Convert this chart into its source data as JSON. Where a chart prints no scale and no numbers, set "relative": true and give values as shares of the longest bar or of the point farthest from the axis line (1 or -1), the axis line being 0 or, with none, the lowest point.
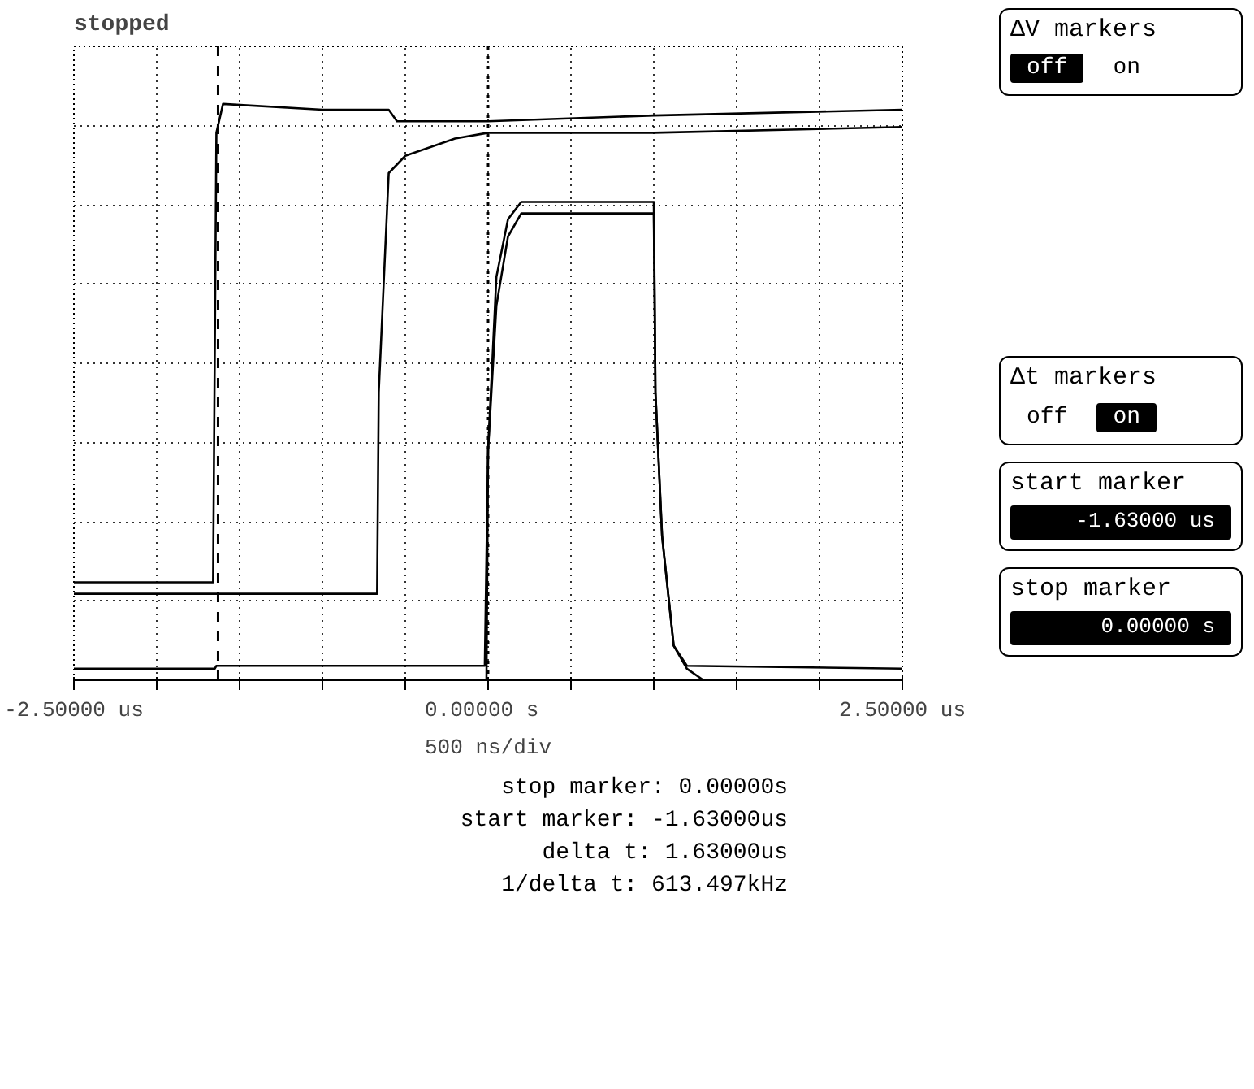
{
  "chart_data": {
    "type": "line",
    "relative": true,
    "title": "stopped",
    "xlabel": "500 ns/div",
    "xlim": [
      -2.5,
      2.5
    ],
    "xticks": [
      {
        "value": -2.5,
        "label": "-2.50000 us"
      },
      {
        "value": -2.0,
        "label": null
      },
      {
        "value": -1.5,
        "label": null
      },
      {
        "value": -1.0,
        "label": null
      },
      {
        "value": -0.5,
        "label": null
      },
      {
        "value": 0,
        "label": "0.00000  s"
      },
      {
        "value": 0.5,
        "label": null
      },
      {
        "value": 1.0,
        "label": null
      },
      {
        "value": 1.5,
        "label": null
      },
      {
        "value": 2.0,
        "label": null
      },
      {
        "value": 2.5,
        "label": "2.50000 us"
      }
    ],
    "grid": true,
    "line_style": "solid",
    "tick_labels": "x",
    "series": [
      {
        "color": "#000000",
        "x": [
          -2.5,
          -1.66,
          -1.64,
          -1.6,
          -1.0,
          -0.6,
          -0.55,
          0,
          1.0,
          2.5
        ],
        "values": [
          0.17,
          0.17,
          0.95,
          1.0,
          0.99,
          0.99,
          0.97,
          0.97,
          0.98,
          0.99
        ]
      },
      {
        "color": "#000000",
        "x": [
          -2.5,
          -0.67,
          -0.66,
          -0.6,
          -0.5,
          -0.2,
          0,
          1.0,
          2.5
        ],
        "values": [
          0.15,
          0.15,
          0.5,
          0.88,
          0.91,
          0.94,
          0.95,
          0.95,
          0.96
        ]
      },
      {
        "color": "#000000",
        "x": [
          -2.5,
          -1.65,
          -1.64,
          -0.02,
          0.0,
          0.05,
          0.12,
          0.2,
          1.0,
          1.01,
          1.05,
          1.12,
          1.2,
          2.5
        ],
        "values": [
          0.02,
          0.02,
          0.025,
          0.025,
          0.4,
          0.7,
          0.8,
          0.83,
          0.83,
          0.5,
          0.25,
          0.06,
          0.025,
          0.02
        ]
      },
      {
        "color": "#000000",
        "x": [
          -2.5,
          -0.01,
          0.0,
          0.05,
          0.12,
          0.2,
          1.0,
          1.01,
          1.05,
          1.12,
          1.2,
          1.3,
          2.5
        ],
        "values": [
          0,
          0,
          0.4,
          0.65,
          0.77,
          0.81,
          0.81,
          0.5,
          0.25,
          0.06,
          0.02,
          0,
          0
        ]
      }
    ],
    "ref_lines": [
      {
        "axis": "x",
        "value": -1.63,
        "color": "#000000",
        "line_style": "dashed"
      },
      {
        "axis": "x",
        "value": 0,
        "color": "#000000",
        "line_style": "dotted"
      }
    ],
    "annotations": [
      "ΔV markers",
      "off",
      "on",
      "Δt markers",
      "off",
      "on",
      "start marker",
      "-1.63000 us",
      "stop marker",
      "0.00000 s",
      "stop marker: 0.00000s",
      "start marker: -1.63000us",
      "delta t: 1.63000us",
      "1/delta t: 613.497kHz"
    ]
  }
}
